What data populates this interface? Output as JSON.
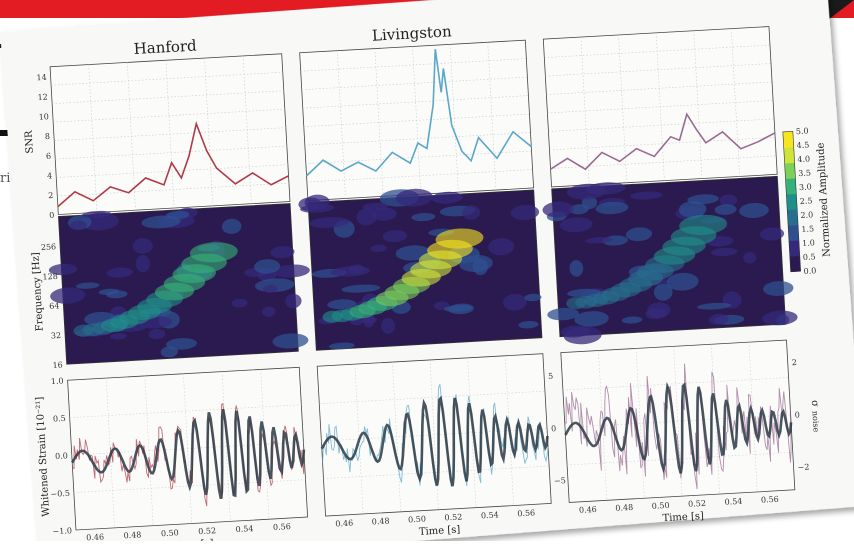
{
  "colors": {
    "hanford": "#b03a48",
    "livingston": "#5aa7c8",
    "virgo": "#9a6a92",
    "accent_red": "#e31b23",
    "wave": "#2b3a44"
  },
  "background_text": {
    "fragment": "ries"
  },
  "chart_data": [
    {
      "type": "line",
      "title": "Hanford",
      "ylabel": "SNR",
      "ylim": [
        0,
        15
      ],
      "yticks": [
        0,
        2,
        4,
        6,
        8,
        10,
        12,
        14
      ],
      "x": [
        0.44,
        0.45,
        0.46,
        0.47,
        0.48,
        0.49,
        0.5,
        0.505,
        0.51,
        0.515,
        0.52,
        0.525,
        0.53,
        0.54,
        0.55,
        0.56,
        0.57
      ],
      "values": [
        0.8,
        2.2,
        1.2,
        2.5,
        1.8,
        3.2,
        2.4,
        4.6,
        3.0,
        5.2,
        8.4,
        5.6,
        3.8,
        2.1,
        3.1,
        1.8,
        2.6
      ]
    },
    {
      "type": "line",
      "title": "Livingston",
      "ylim": [
        0,
        15
      ],
      "x": [
        0.44,
        0.45,
        0.46,
        0.47,
        0.48,
        0.49,
        0.5,
        0.505,
        0.51,
        0.515,
        0.518,
        0.52,
        0.522,
        0.525,
        0.53,
        0.535,
        0.54,
        0.55,
        0.56,
        0.57
      ],
      "values": [
        2.5,
        4.0,
        2.8,
        3.6,
        2.6,
        4.4,
        3.2,
        5.2,
        4.6,
        9.0,
        14.6,
        10.2,
        12.6,
        6.8,
        4.1,
        3.1,
        5.4,
        3.2,
        5.8,
        4.2
      ]
    },
    {
      "type": "line",
      "title": "",
      "ylim": [
        0,
        15
      ],
      "x": [
        0.44,
        0.45,
        0.46,
        0.47,
        0.48,
        0.49,
        0.5,
        0.51,
        0.515,
        0.52,
        0.525,
        0.53,
        0.54,
        0.55,
        0.56,
        0.57
      ],
      "values": [
        1.8,
        2.8,
        1.6,
        3.2,
        2.2,
        3.4,
        2.5,
        4.4,
        4.0,
        6.6,
        5.0,
        3.6,
        4.6,
        2.8,
        3.4,
        4.2
      ]
    },
    {
      "type": "heatmap",
      "ylabel": "Frequency [Hz]",
      "yticks": [
        16,
        32,
        64,
        128,
        256
      ],
      "colorbar_label": "Normalized Amplitude",
      "colorbar_ticks": [
        "0.0",
        "0.5",
        "1.0",
        "1.5",
        "2.0",
        "2.5",
        "3.0",
        "3.5",
        "4.0",
        "4.5",
        "5.0"
      ],
      "clim": [
        0,
        5
      ]
    },
    {
      "type": "line",
      "ylabel": "Whitened Strain [10⁻²¹]",
      "ylim": [
        -1.0,
        1.0
      ],
      "yticks": [
        "−1.0",
        "−0.5",
        "0.0",
        "0.5",
        "1.0"
      ],
      "xlabel": "Time [s]",
      "xticks": [
        "0.46",
        "0.48",
        "0.50",
        "0.52",
        "0.54",
        "0.56"
      ]
    },
    {
      "type": "line",
      "xlabel": "Time [s]",
      "yticks_right": [
        "−5",
        "0",
        "5"
      ],
      "xticks": [
        "0.46",
        "0.48",
        "0.50",
        "0.52",
        "0.54",
        "0.56"
      ]
    },
    {
      "type": "line",
      "xlabel": "Time [s]",
      "ylabel_right": "σ",
      "ylabel_right_sub": "noise",
      "yticks_right": [
        "−2",
        "0",
        "2"
      ],
      "xticks": [
        "0.46",
        "0.48",
        "0.50",
        "0.52",
        "0.54",
        "0.56"
      ]
    }
  ]
}
